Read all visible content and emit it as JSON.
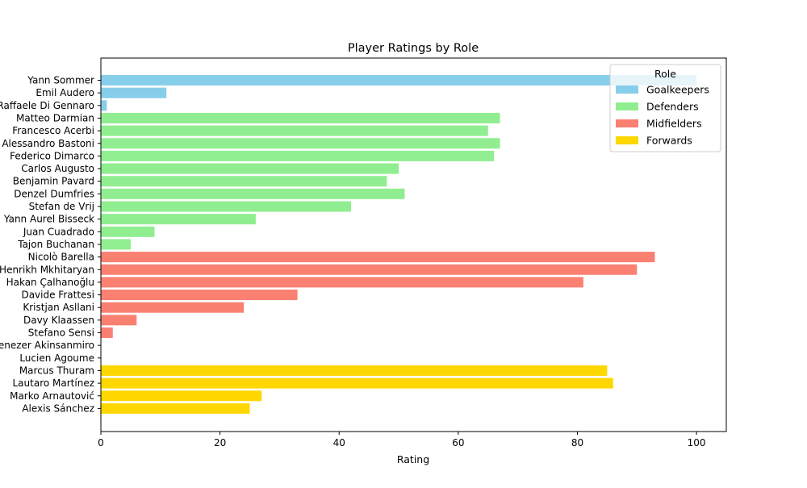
{
  "chart_data": {
    "type": "bar",
    "orientation": "horizontal",
    "title": "Player Ratings by Role",
    "xlabel": "Rating",
    "ylabel": "",
    "xlim": [
      0,
      105
    ],
    "xticks": [
      0,
      20,
      40,
      60,
      80,
      100
    ],
    "grid": false,
    "legend": {
      "title": "Role",
      "placement": "top-right",
      "entries": [
        {
          "label": "Goalkeepers",
          "color": "#87CEEB"
        },
        {
          "label": "Defenders",
          "color": "#90EE90"
        },
        {
          "label": "Midfielders",
          "color": "#FA8072"
        },
        {
          "label": "Forwards",
          "color": "#FFD700"
        }
      ]
    },
    "categories": [
      "Yann Sommer",
      "Emil Audero",
      "Raffaele Di Gennaro",
      "Matteo Darmian",
      "Francesco Acerbi",
      "Alessandro Bastoni",
      "Federico Dimarco",
      "Carlos Augusto",
      "Benjamin Pavard",
      "Denzel Dumfries",
      "Stefan de Vrij",
      "Yann Aurel Bisseck",
      "Juan Cuadrado",
      "Tajon Buchanan",
      "Nicolò Barella",
      "Henrikh Mkhitaryan",
      "Hakan Çalhanoğlu",
      "Davide Frattesi",
      "Kristjan Asllani",
      "Davy Klaassen",
      "Stefano Sensi",
      "Ebenezer Akinsanmiro",
      "Lucien Agoume",
      "Marcus Thuram",
      "Lautaro Martínez",
      "Marko Arnautović",
      "Alexis Sánchez"
    ],
    "values": [
      100,
      11,
      1,
      67,
      65,
      67,
      66,
      50,
      48,
      51,
      42,
      26,
      9,
      5,
      93,
      90,
      81,
      33,
      24,
      6,
      2,
      0,
      0,
      85,
      86,
      27,
      25
    ],
    "roles": [
      0,
      0,
      0,
      1,
      1,
      1,
      1,
      1,
      1,
      1,
      1,
      1,
      1,
      1,
      2,
      2,
      2,
      2,
      2,
      2,
      2,
      2,
      2,
      3,
      3,
      3,
      3
    ]
  }
}
